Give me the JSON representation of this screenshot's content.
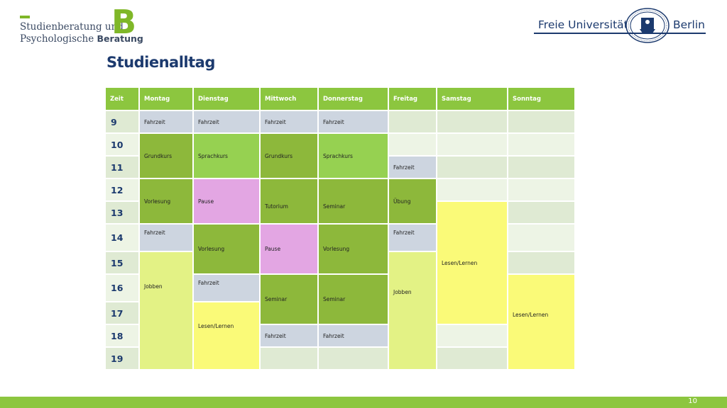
{
  "logo_left": {
    "line1": "Studienberatung und",
    "line2_a": "Psychologische ",
    "line2_b": "Beratung",
    "mark": "B"
  },
  "logo_right": {
    "left_text": "Freie Universität",
    "right_text": "Berlin",
    "seal": "fu-seal-icon"
  },
  "title": "Studienalltag",
  "table": {
    "headers": [
      "Zeit",
      "Montag",
      "Dienstag",
      "Mittwoch",
      "Donnerstag",
      "Freitag",
      "Samstag",
      "Sonntag"
    ],
    "hours": [
      "9",
      "10",
      "11",
      "12",
      "13",
      "14",
      "15",
      "16",
      "17",
      "18",
      "19"
    ],
    "entries": {
      "fahrzeit": "Fahrzeit",
      "grundkurs": "Grundkurs",
      "sprachkurs": "Sprachkurs",
      "vorlesung": "Vorlesung",
      "pause": "Pause",
      "tutorium": "Tutorium",
      "seminar": "Seminar",
      "uebung": "Übung",
      "lesen_lernen": "Lesen/Lernen",
      "jobben": "Jobben"
    }
  },
  "colors": {
    "header": "#8cc63f",
    "dark_green": "#8db83b",
    "green": "#96d151",
    "grey": "#cdd5e0",
    "pink": "#e3a6e3",
    "lime": "#e3f285",
    "yellow": "#fafa78",
    "empty": "#dfead3",
    "navy": "#1c3a6e"
  },
  "page_number": "10"
}
